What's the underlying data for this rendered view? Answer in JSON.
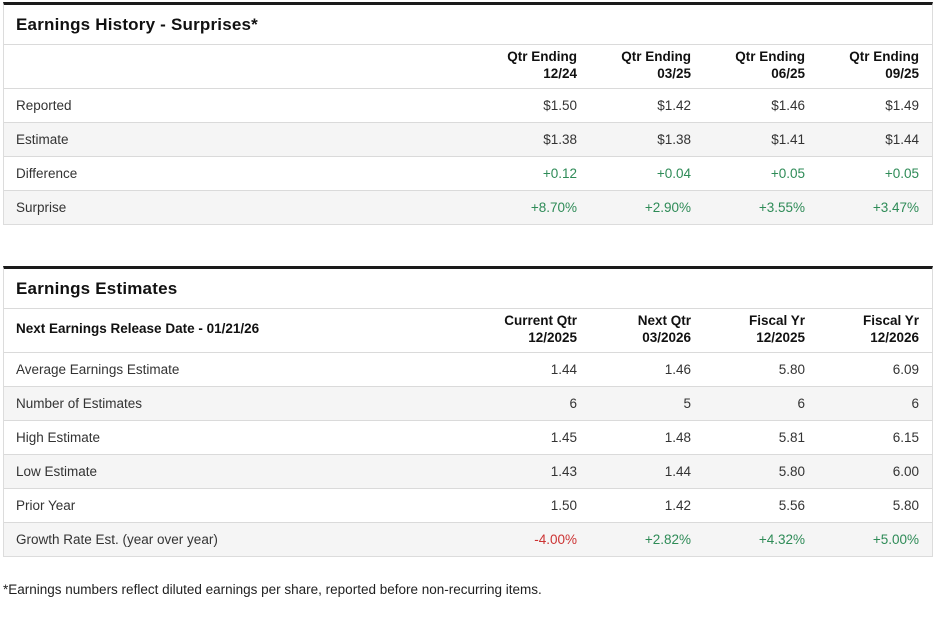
{
  "colors": {
    "positive": "#2e8b57",
    "negative": "#cc3333",
    "row-alt-bg": "#f5f5f5",
    "panel-border": "#dcdcdc",
    "panel-top-border": "#1a1a1a",
    "row-separator": "#dadada",
    "text": "#333333",
    "title-text": "#111111"
  },
  "earnings_history": {
    "title": "Earnings History - Surprises*",
    "columns": [
      {
        "line1": "Qtr Ending",
        "line2": "12/24"
      },
      {
        "line1": "Qtr Ending",
        "line2": "03/25"
      },
      {
        "line1": "Qtr Ending",
        "line2": "06/25"
      },
      {
        "line1": "Qtr Ending",
        "line2": "09/25"
      }
    ],
    "rows": [
      {
        "label": "Reported",
        "values": [
          "$1.50",
          "$1.42",
          "$1.46",
          "$1.49"
        ],
        "tones": [
          "",
          "",
          "",
          ""
        ]
      },
      {
        "label": "Estimate",
        "values": [
          "$1.38",
          "$1.38",
          "$1.41",
          "$1.44"
        ],
        "tones": [
          "",
          "",
          "",
          ""
        ]
      },
      {
        "label": "Difference",
        "values": [
          "+0.12",
          "+0.04",
          "+0.05",
          "+0.05"
        ],
        "tones": [
          "pos",
          "pos",
          "pos",
          "pos"
        ]
      },
      {
        "label": "Surprise",
        "values": [
          "+8.70%",
          "+2.90%",
          "+3.55%",
          "+3.47%"
        ],
        "tones": [
          "pos",
          "pos",
          "pos",
          "pos"
        ]
      }
    ]
  },
  "earnings_estimates": {
    "title": "Earnings Estimates",
    "subtitle": "Next Earnings Release Date - 01/21/26",
    "columns": [
      {
        "line1": "Current Qtr",
        "line2": "12/2025"
      },
      {
        "line1": "Next Qtr",
        "line2": "03/2026"
      },
      {
        "line1": "Fiscal Yr",
        "line2": "12/2025"
      },
      {
        "line1": "Fiscal Yr",
        "line2": "12/2026"
      }
    ],
    "rows": [
      {
        "label": "Average Earnings Estimate",
        "values": [
          "1.44",
          "1.46",
          "5.80",
          "6.09"
        ],
        "tones": [
          "",
          "",
          "",
          ""
        ]
      },
      {
        "label": "Number of Estimates",
        "values": [
          "6",
          "5",
          "6",
          "6"
        ],
        "tones": [
          "",
          "",
          "",
          ""
        ]
      },
      {
        "label": "High Estimate",
        "values": [
          "1.45",
          "1.48",
          "5.81",
          "6.15"
        ],
        "tones": [
          "",
          "",
          "",
          ""
        ]
      },
      {
        "label": "Low Estimate",
        "values": [
          "1.43",
          "1.44",
          "5.80",
          "6.00"
        ],
        "tones": [
          "",
          "",
          "",
          ""
        ]
      },
      {
        "label": "Prior Year",
        "values": [
          "1.50",
          "1.42",
          "5.56",
          "5.80"
        ],
        "tones": [
          "",
          "",
          "",
          ""
        ]
      },
      {
        "label": "Growth Rate Est. (year over year)",
        "values": [
          "-4.00%",
          "+2.82%",
          "+4.32%",
          "+5.00%"
        ],
        "tones": [
          "neg",
          "pos",
          "pos",
          "pos"
        ]
      }
    ]
  },
  "footnote": "*Earnings numbers reflect diluted earnings per share, reported before non-recurring items."
}
